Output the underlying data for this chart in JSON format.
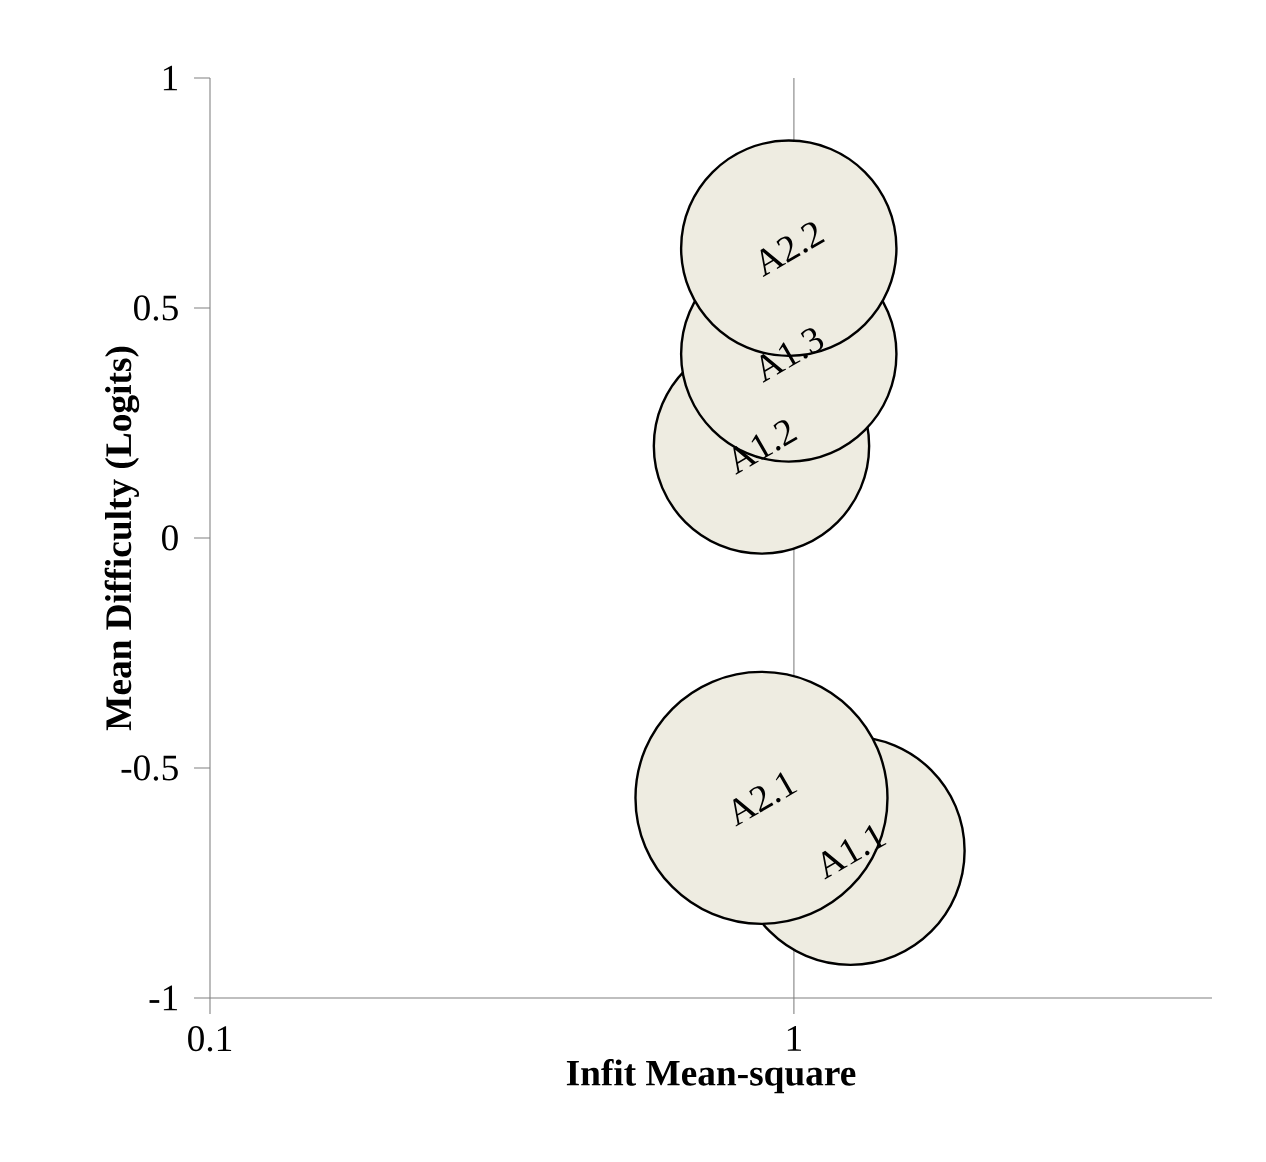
{
  "chart_data": {
    "type": "bubble",
    "xlabel": "Infit Mean-square",
    "ylabel": "Mean Difficulty (Logits)",
    "log": "x",
    "xlim": [
      0.1,
      5.2
    ],
    "xticks": [
      0.1,
      1
    ],
    "ylim": [
      -1,
      1
    ],
    "yticks": [
      -1,
      -0.5,
      0,
      0.5,
      1
    ],
    "ref_lines": [
      {
        "axis": "x",
        "value": 1,
        "color": "#808080"
      }
    ],
    "series": [
      {
        "color": "#eeece1",
        "x": [
          1.25,
          0.88,
          0.98,
          0.88,
          0.98
        ],
        "values": [
          -0.68,
          0.2,
          0.4,
          -0.565,
          0.63
        ],
        "sizes": [
          0.82,
          0.73,
          0.73,
          1,
          0.73
        ]
      }
    ],
    "annotations": [
      {
        "text": "A1.1",
        "x": 1.25,
        "y": -0.68
      },
      {
        "text": "A1.2",
        "x": 0.88,
        "y": 0.2
      },
      {
        "text": "A1.3",
        "x": 0.98,
        "y": 0.4
      },
      {
        "text": "A2.1",
        "x": 0.88,
        "y": -0.565
      },
      {
        "text": "A2.2",
        "x": 0.98,
        "y": 0.63
      }
    ]
  }
}
